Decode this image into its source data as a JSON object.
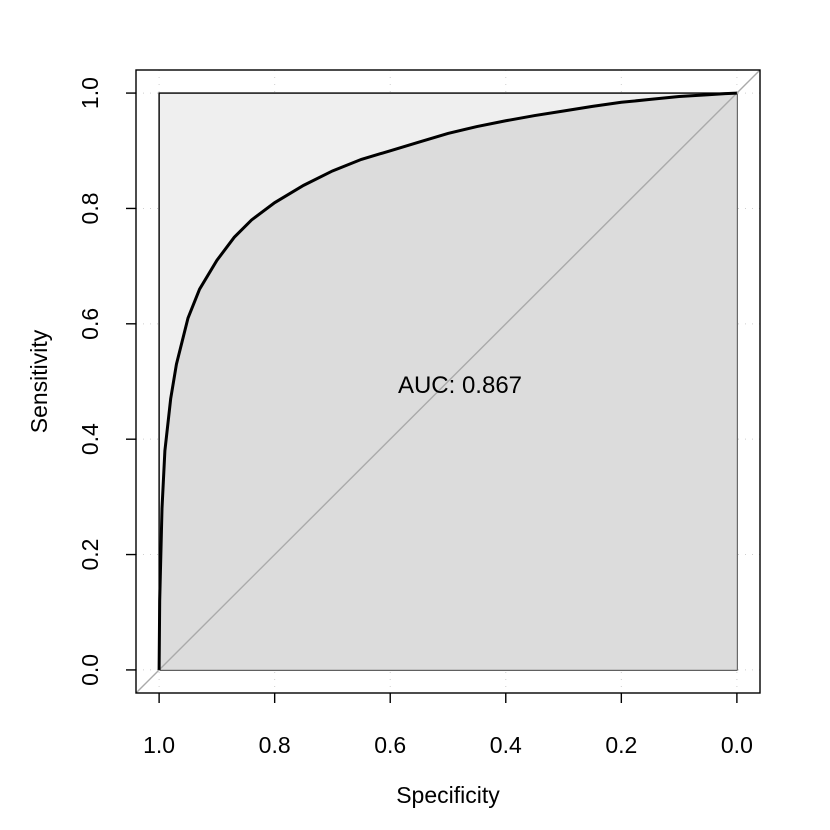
{
  "chart_data": {
    "type": "line",
    "title": "",
    "xlabel": "Specificity",
    "ylabel": "Sensitivity",
    "xlim": [
      1.04,
      -0.04
    ],
    "ylim": [
      -0.04,
      1.04
    ],
    "x_reversed": true,
    "x_ticks": [
      1.0,
      0.8,
      0.6,
      0.4,
      0.2,
      0.0
    ],
    "x_tick_labels": [
      "1.0",
      "0.8",
      "0.6",
      "0.4",
      "0.2",
      "0.0"
    ],
    "y_ticks": [
      0.0,
      0.2,
      0.4,
      0.6,
      0.8,
      1.0
    ],
    "y_tick_labels": [
      "0.0",
      "0.2",
      "0.4",
      "0.6",
      "0.8",
      "1.0"
    ],
    "grid": true,
    "series": [
      {
        "specificity": [
          1.0,
          0.999,
          0.995,
          0.99,
          0.98,
          0.97,
          0.96,
          0.95,
          0.93,
          0.9,
          0.87,
          0.84,
          0.8,
          0.75,
          0.7,
          0.65,
          0.6,
          0.55,
          0.5,
          0.45,
          0.4,
          0.35,
          0.3,
          0.25,
          0.2,
          0.15,
          0.1,
          0.05,
          0.02,
          0.0
        ],
        "sensitivity": [
          0.0,
          0.12,
          0.28,
          0.38,
          0.47,
          0.53,
          0.57,
          0.61,
          0.66,
          0.71,
          0.75,
          0.78,
          0.81,
          0.84,
          0.865,
          0.885,
          0.9,
          0.915,
          0.93,
          0.942,
          0.952,
          0.961,
          0.969,
          0.977,
          0.984,
          0.989,
          0.994,
          0.997,
          0.999,
          1.0
        ],
        "color": "#000000"
      }
    ],
    "diagonal": {
      "from": [
        1.0,
        0.0
      ],
      "to": [
        0.0,
        1.0
      ],
      "color": "#aaaaaa"
    },
    "auc_polygon_fill": "#dcdcdc",
    "max_auc_polygon_fill": "#efefef",
    "annotations": [
      {
        "text": "AUC: 0.867",
        "x": 0.5,
        "y": 0.48
      }
    ]
  }
}
